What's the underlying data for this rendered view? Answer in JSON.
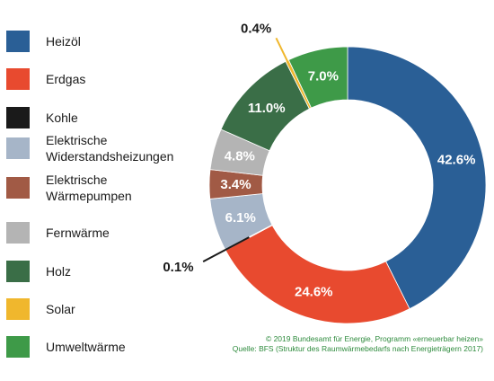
{
  "chart_data": {
    "type": "pie",
    "style": "donut",
    "legend_position": "left",
    "categories": [
      "Heizöl",
      "Erdgas",
      "Kohle",
      "Elektrische\nWiderstandsheizungen",
      "Elektrische\nWärmepumpen",
      "Fernwärme",
      "Holz",
      "Solar",
      "Umweltwärme"
    ],
    "values": [
      42.6,
      24.6,
      0.1,
      6.1,
      3.4,
      4.8,
      11.0,
      0.4,
      7.0
    ],
    "value_labels": [
      "42.6%",
      "24.6%",
      "0.1%",
      "6.1%",
      "3.4%",
      "4.8%",
      "11.0%",
      "0.4%",
      "7.0%"
    ],
    "colors": [
      "#2a5f96",
      "#e84a2f",
      "#1a1a1a",
      "#a6b5c8",
      "#a15a45",
      "#b4b4b4",
      "#3a6e47",
      "#f0b72d",
      "#3e9a48"
    ]
  },
  "footer": {
    "line1": "© 2019 Bundesamt für Energie, Programm «erneuerbar heizen»",
    "line2": "Quelle: BFS (Struktur des Raumwärmebedarfs nach Energieträgern 2017)"
  }
}
